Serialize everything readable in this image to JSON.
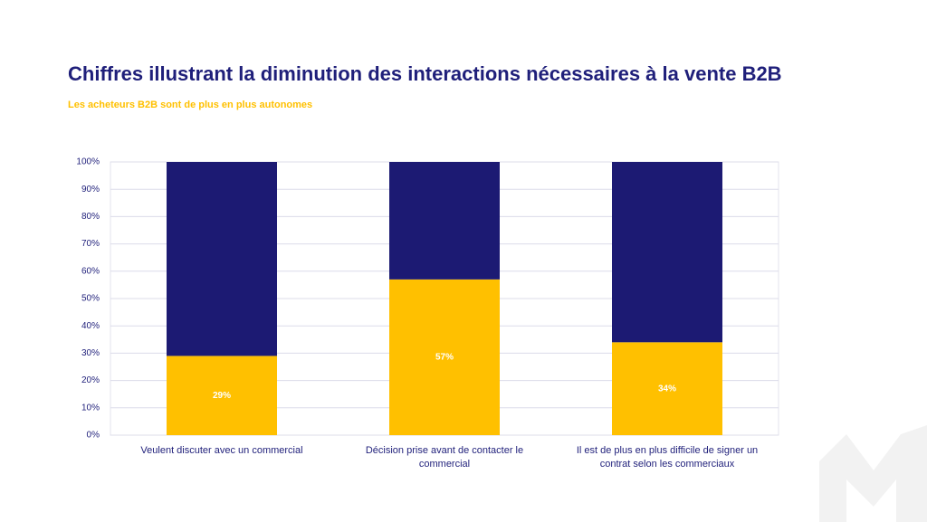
{
  "chart_data": {
    "type": "stacked_bar",
    "title": "Chiffres illustrant la diminution des interactions nécessaires à la vente B2B",
    "subtitle": "Les acheteurs B2B sont de plus en plus autonomes",
    "categories": [
      "Veulent discuter avec un commercial",
      "Décision prise avant de contacter le commercial",
      "Il est de plus en plus difficile de signer un contrat selon les commerciaux"
    ],
    "series": [
      {
        "color": "#ffc000",
        "values": [
          29,
          57,
          34
        ],
        "value_labels": [
          "29%",
          "57%",
          "34%"
        ]
      },
      {
        "color": "#1c1a73",
        "values": [
          71,
          43,
          66
        ]
      }
    ],
    "ylim": [
      0,
      100
    ],
    "yticks": [
      {
        "value": 0,
        "label": "0%"
      },
      {
        "value": 10,
        "label": "10%"
      },
      {
        "value": 20,
        "label": "20%"
      },
      {
        "value": 30,
        "label": "30%"
      },
      {
        "value": 40,
        "label": "40%"
      },
      {
        "value": 50,
        "label": "50%"
      },
      {
        "value": 60,
        "label": "60%"
      },
      {
        "value": 70,
        "label": "70%"
      },
      {
        "value": 80,
        "label": "80%"
      },
      {
        "value": 90,
        "label": "90%"
      },
      {
        "value": 100,
        "label": "100%"
      }
    ],
    "grid": true
  }
}
